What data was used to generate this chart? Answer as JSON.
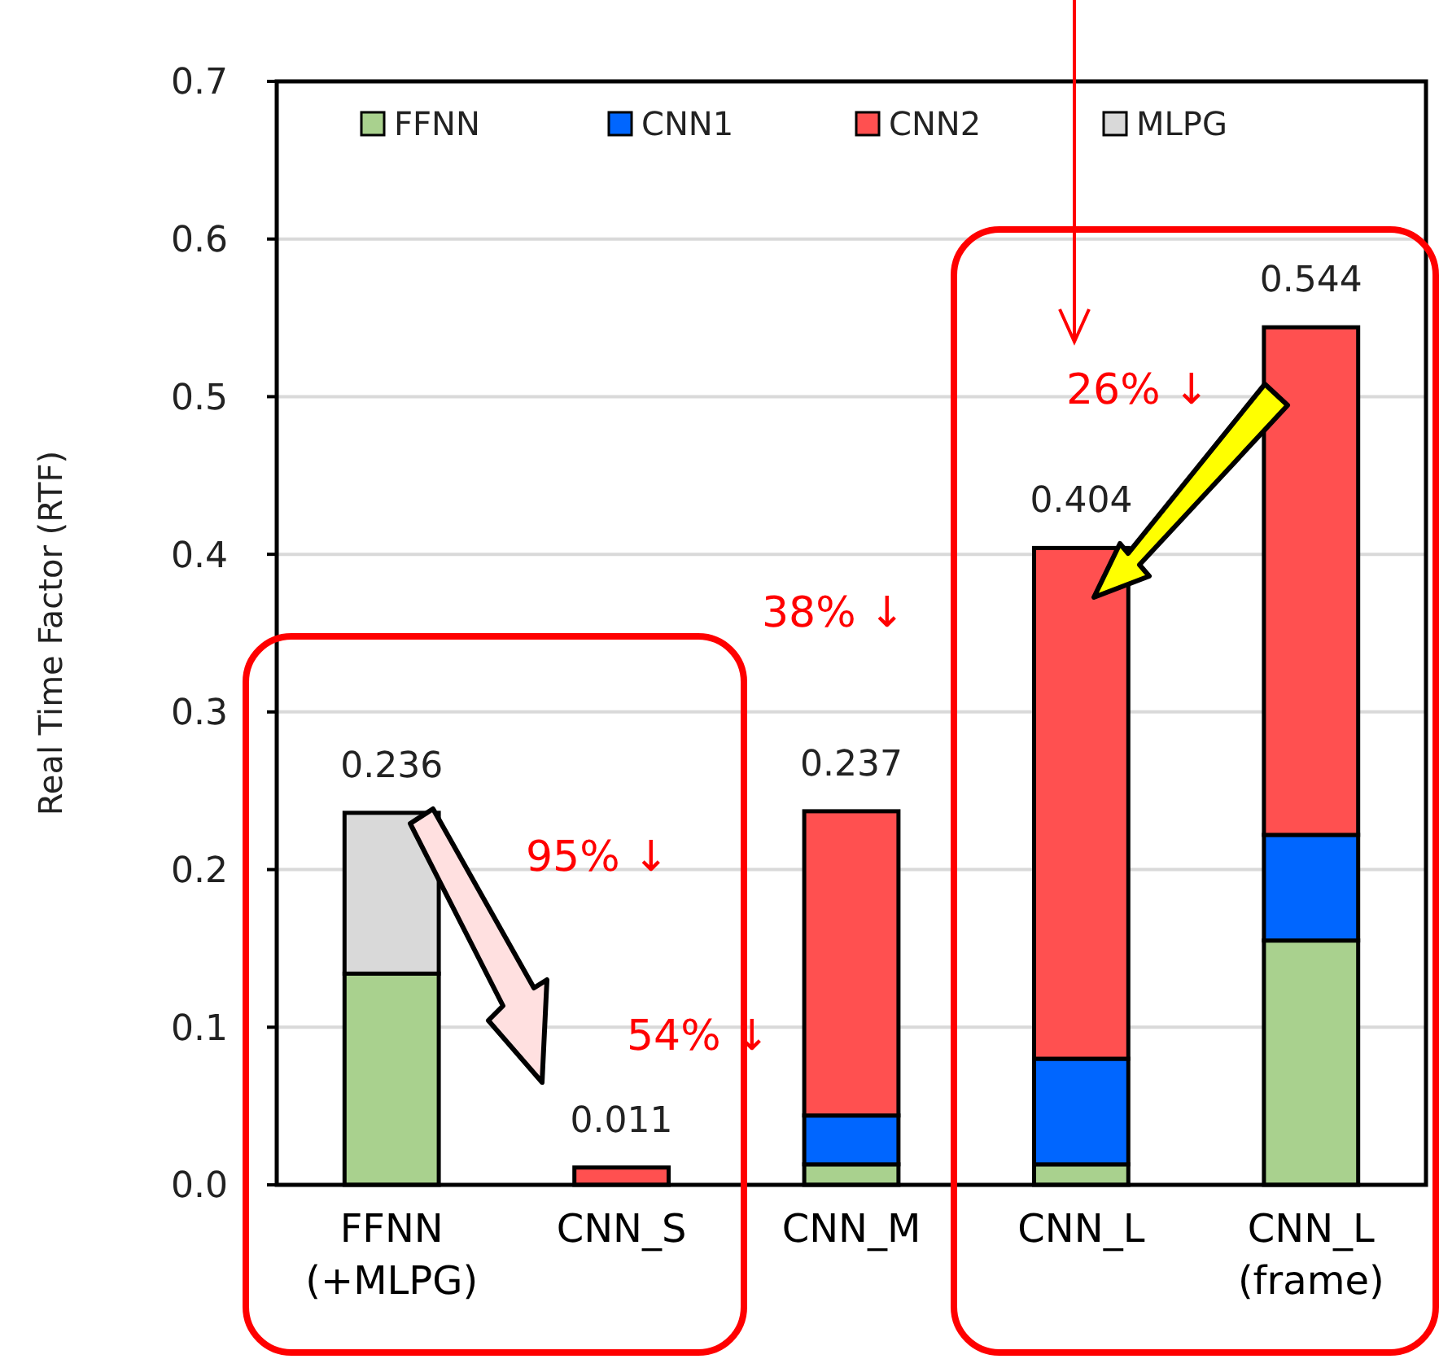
{
  "chart_data": {
    "type": "bar",
    "stacked": true,
    "ylabel": "Real Time Factor (RTF)",
    "categories": [
      "FFNN\n(+MLPG)",
      "CNN_S",
      "CNN_M",
      "CNN_L",
      "CNN_L\n(frame)"
    ],
    "series": [
      {
        "name": "FFNN",
        "color": "#a9d18e",
        "values": [
          0.134,
          null,
          0.013,
          0.013,
          0.155
        ]
      },
      {
        "name": "CNN1",
        "color": "#0066ff",
        "values": [
          null,
          null,
          0.031,
          0.067,
          0.067
        ]
      },
      {
        "name": "CNN2",
        "color": "#ff5050",
        "values": [
          null,
          0.011,
          0.193,
          0.324,
          0.322
        ]
      },
      {
        "name": "MLPG",
        "color": "#d9d9d9",
        "values": [
          0.102,
          null,
          null,
          null,
          null
        ]
      }
    ],
    "totals": [
      "0.236",
      "0.011",
      "0.237",
      "0.404",
      "0.544"
    ],
    "annotations": [
      "95% ↓",
      "54% ↓",
      "38% ↓",
      "26% ↓"
    ],
    "ylim": [
      0,
      0.7
    ],
    "yticks": [
      {
        "value": 0,
        "label": "0.0"
      },
      0.1,
      0.2,
      0.3,
      0.4,
      0.5,
      0.6,
      0.7
    ],
    "grid": "y",
    "legend": "top"
  }
}
